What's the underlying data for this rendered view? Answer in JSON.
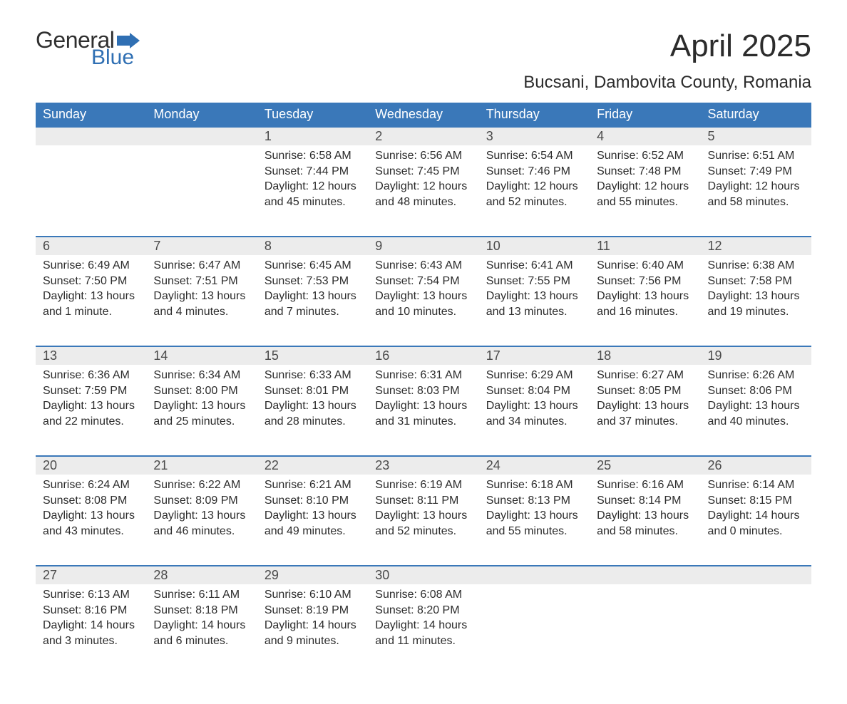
{
  "logo": {
    "text1": "General",
    "text2": "Blue",
    "flag_color": "#2f6fb3"
  },
  "title": "April 2025",
  "location": "Bucsani, Dambovita County, Romania",
  "colors": {
    "header_bg": "#3a78b9",
    "header_text": "#ffffff",
    "daynum_bg": "#ececec",
    "row_border": "#3a78b9",
    "body_text": "#2c2c2c"
  },
  "weekdays": [
    "Sunday",
    "Monday",
    "Tuesday",
    "Wednesday",
    "Thursday",
    "Friday",
    "Saturday"
  ],
  "weeks": [
    [
      null,
      null,
      {
        "n": "1",
        "sunrise": "Sunrise: 6:58 AM",
        "sunset": "Sunset: 7:44 PM",
        "d1": "Daylight: 12 hours",
        "d2": "and 45 minutes."
      },
      {
        "n": "2",
        "sunrise": "Sunrise: 6:56 AM",
        "sunset": "Sunset: 7:45 PM",
        "d1": "Daylight: 12 hours",
        "d2": "and 48 minutes."
      },
      {
        "n": "3",
        "sunrise": "Sunrise: 6:54 AM",
        "sunset": "Sunset: 7:46 PM",
        "d1": "Daylight: 12 hours",
        "d2": "and 52 minutes."
      },
      {
        "n": "4",
        "sunrise": "Sunrise: 6:52 AM",
        "sunset": "Sunset: 7:48 PM",
        "d1": "Daylight: 12 hours",
        "d2": "and 55 minutes."
      },
      {
        "n": "5",
        "sunrise": "Sunrise: 6:51 AM",
        "sunset": "Sunset: 7:49 PM",
        "d1": "Daylight: 12 hours",
        "d2": "and 58 minutes."
      }
    ],
    [
      {
        "n": "6",
        "sunrise": "Sunrise: 6:49 AM",
        "sunset": "Sunset: 7:50 PM",
        "d1": "Daylight: 13 hours",
        "d2": "and 1 minute."
      },
      {
        "n": "7",
        "sunrise": "Sunrise: 6:47 AM",
        "sunset": "Sunset: 7:51 PM",
        "d1": "Daylight: 13 hours",
        "d2": "and 4 minutes."
      },
      {
        "n": "8",
        "sunrise": "Sunrise: 6:45 AM",
        "sunset": "Sunset: 7:53 PM",
        "d1": "Daylight: 13 hours",
        "d2": "and 7 minutes."
      },
      {
        "n": "9",
        "sunrise": "Sunrise: 6:43 AM",
        "sunset": "Sunset: 7:54 PM",
        "d1": "Daylight: 13 hours",
        "d2": "and 10 minutes."
      },
      {
        "n": "10",
        "sunrise": "Sunrise: 6:41 AM",
        "sunset": "Sunset: 7:55 PM",
        "d1": "Daylight: 13 hours",
        "d2": "and 13 minutes."
      },
      {
        "n": "11",
        "sunrise": "Sunrise: 6:40 AM",
        "sunset": "Sunset: 7:56 PM",
        "d1": "Daylight: 13 hours",
        "d2": "and 16 minutes."
      },
      {
        "n": "12",
        "sunrise": "Sunrise: 6:38 AM",
        "sunset": "Sunset: 7:58 PM",
        "d1": "Daylight: 13 hours",
        "d2": "and 19 minutes."
      }
    ],
    [
      {
        "n": "13",
        "sunrise": "Sunrise: 6:36 AM",
        "sunset": "Sunset: 7:59 PM",
        "d1": "Daylight: 13 hours",
        "d2": "and 22 minutes."
      },
      {
        "n": "14",
        "sunrise": "Sunrise: 6:34 AM",
        "sunset": "Sunset: 8:00 PM",
        "d1": "Daylight: 13 hours",
        "d2": "and 25 minutes."
      },
      {
        "n": "15",
        "sunrise": "Sunrise: 6:33 AM",
        "sunset": "Sunset: 8:01 PM",
        "d1": "Daylight: 13 hours",
        "d2": "and 28 minutes."
      },
      {
        "n": "16",
        "sunrise": "Sunrise: 6:31 AM",
        "sunset": "Sunset: 8:03 PM",
        "d1": "Daylight: 13 hours",
        "d2": "and 31 minutes."
      },
      {
        "n": "17",
        "sunrise": "Sunrise: 6:29 AM",
        "sunset": "Sunset: 8:04 PM",
        "d1": "Daylight: 13 hours",
        "d2": "and 34 minutes."
      },
      {
        "n": "18",
        "sunrise": "Sunrise: 6:27 AM",
        "sunset": "Sunset: 8:05 PM",
        "d1": "Daylight: 13 hours",
        "d2": "and 37 minutes."
      },
      {
        "n": "19",
        "sunrise": "Sunrise: 6:26 AM",
        "sunset": "Sunset: 8:06 PM",
        "d1": "Daylight: 13 hours",
        "d2": "and 40 minutes."
      }
    ],
    [
      {
        "n": "20",
        "sunrise": "Sunrise: 6:24 AM",
        "sunset": "Sunset: 8:08 PM",
        "d1": "Daylight: 13 hours",
        "d2": "and 43 minutes."
      },
      {
        "n": "21",
        "sunrise": "Sunrise: 6:22 AM",
        "sunset": "Sunset: 8:09 PM",
        "d1": "Daylight: 13 hours",
        "d2": "and 46 minutes."
      },
      {
        "n": "22",
        "sunrise": "Sunrise: 6:21 AM",
        "sunset": "Sunset: 8:10 PM",
        "d1": "Daylight: 13 hours",
        "d2": "and 49 minutes."
      },
      {
        "n": "23",
        "sunrise": "Sunrise: 6:19 AM",
        "sunset": "Sunset: 8:11 PM",
        "d1": "Daylight: 13 hours",
        "d2": "and 52 minutes."
      },
      {
        "n": "24",
        "sunrise": "Sunrise: 6:18 AM",
        "sunset": "Sunset: 8:13 PM",
        "d1": "Daylight: 13 hours",
        "d2": "and 55 minutes."
      },
      {
        "n": "25",
        "sunrise": "Sunrise: 6:16 AM",
        "sunset": "Sunset: 8:14 PM",
        "d1": "Daylight: 13 hours",
        "d2": "and 58 minutes."
      },
      {
        "n": "26",
        "sunrise": "Sunrise: 6:14 AM",
        "sunset": "Sunset: 8:15 PM",
        "d1": "Daylight: 14 hours",
        "d2": "and 0 minutes."
      }
    ],
    [
      {
        "n": "27",
        "sunrise": "Sunrise: 6:13 AM",
        "sunset": "Sunset: 8:16 PM",
        "d1": "Daylight: 14 hours",
        "d2": "and 3 minutes."
      },
      {
        "n": "28",
        "sunrise": "Sunrise: 6:11 AM",
        "sunset": "Sunset: 8:18 PM",
        "d1": "Daylight: 14 hours",
        "d2": "and 6 minutes."
      },
      {
        "n": "29",
        "sunrise": "Sunrise: 6:10 AM",
        "sunset": "Sunset: 8:19 PM",
        "d1": "Daylight: 14 hours",
        "d2": "and 9 minutes."
      },
      {
        "n": "30",
        "sunrise": "Sunrise: 6:08 AM",
        "sunset": "Sunset: 8:20 PM",
        "d1": "Daylight: 14 hours",
        "d2": "and 11 minutes."
      },
      null,
      null,
      null
    ]
  ]
}
